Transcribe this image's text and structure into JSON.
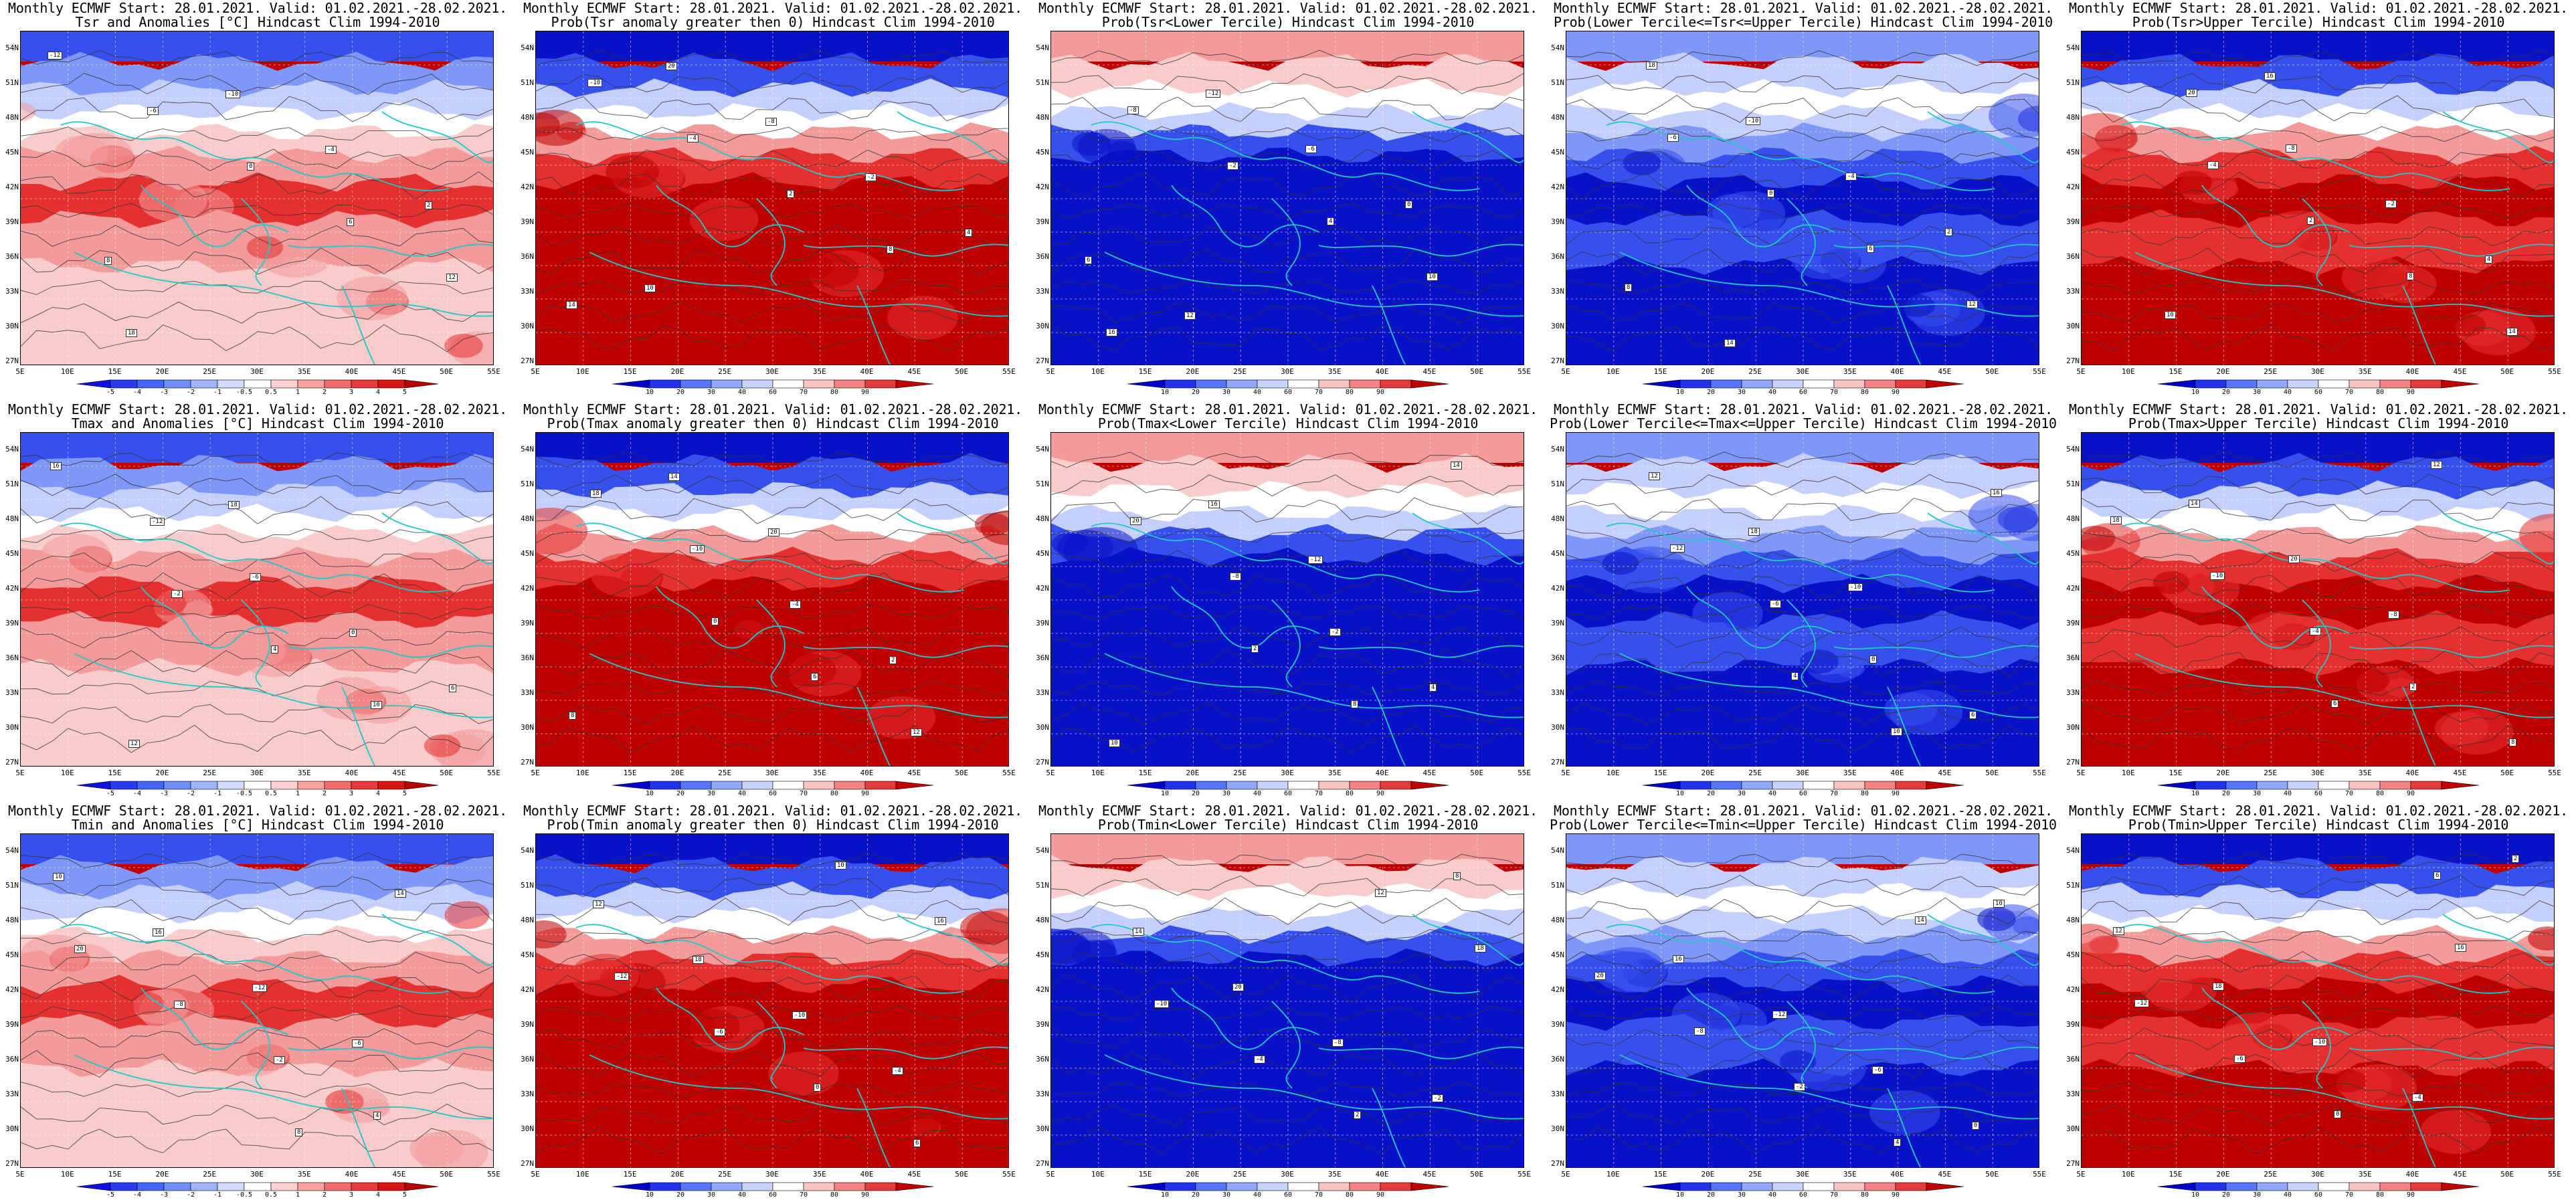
{
  "panels": [
    {
      "line1": "Monthly ECMWF Start: 28.01.2021. Valid: 01.02.2021.-28.02.2021.",
      "line2": "Tsr and Anomalies [°C] Hindcast Clim 1994-2010",
      "kind": "anomaly",
      "scale": "anom"
    },
    {
      "line1": "Monthly ECMWF Start: 28.01.2021. Valid: 01.02.2021.-28.02.2021.",
      "line2": "Prob(Tsr anomaly greater then 0) Hindcast Clim 1994-2010",
      "kind": "warm",
      "scale": "prob"
    },
    {
      "line1": "Monthly ECMWF Start: 28.01.2021. Valid: 01.02.2021.-28.02.2021.",
      "line2": "Prob(Tsr<Lower Tercile) Hindcast Clim 1994-2010",
      "kind": "cold",
      "scale": "prob"
    },
    {
      "line1": "Monthly ECMWF Start: 28.01.2021. Valid: 01.02.2021.-28.02.2021.",
      "line2": "Prob(Lower Tercile<=Tsr<=Upper Tercile) Hindcast Clim 1994-2010",
      "kind": "middle",
      "scale": "prob"
    },
    {
      "line1": "Monthly ECMWF Start: 28.01.2021. Valid: 01.02.2021.-28.02.2021.",
      "line2": "Prob(Tsr>Upper Tercile) Hindcast Clim 1994-2010",
      "kind": "upper",
      "scale": "prob"
    },
    {
      "line1": "Monthly ECMWF Start: 28.01.2021. Valid: 01.02.2021.-28.02.2021.",
      "line2": "Tmax and Anomalies [°C] Hindcast Clim 1994-2010",
      "kind": "anomaly",
      "scale": "anom"
    },
    {
      "line1": "Monthly ECMWF Start: 28.01.2021. Valid: 01.02.2021.-28.02.2021.",
      "line2": "Prob(Tmax anomaly greater then 0) Hindcast Clim 1994-2010",
      "kind": "warm",
      "scale": "prob"
    },
    {
      "line1": "Monthly ECMWF Start: 28.01.2021. Valid: 01.02.2021.-28.02.2021.",
      "line2": "Prob(Tmax<Lower Tercile) Hindcast Clim 1994-2010",
      "kind": "cold",
      "scale": "prob"
    },
    {
      "line1": "Monthly ECMWF Start: 28.01.2021. Valid: 01.02.2021.-28.02.2021.",
      "line2": "Prob(Lower Tercile<=Tmax<=Upper Tercile) Hindcast Clim 1994-2010",
      "kind": "middle",
      "scale": "prob"
    },
    {
      "line1": "Monthly ECMWF Start: 28.01.2021. Valid: 01.02.2021.-28.02.2021.",
      "line2": "Prob(Tmax>Upper Tercile) Hindcast Clim 1994-2010",
      "kind": "upper",
      "scale": "prob"
    },
    {
      "line1": "Monthly ECMWF Start: 28.01.2021. Valid: 01.02.2021.-28.02.2021.",
      "line2": "Tmin and Anomalies [°C] Hindcast Clim 1994-2010",
      "kind": "anomaly",
      "scale": "anom"
    },
    {
      "line1": "Monthly ECMWF Start: 28.01.2021. Valid: 01.02.2021.-28.02.2021.",
      "line2": "Prob(Tmin anomaly greater then 0) Hindcast Clim 1994-2010",
      "kind": "warm",
      "scale": "prob"
    },
    {
      "line1": "Monthly ECMWF Start: 28.01.2021. Valid: 01.02.2021.-28.02.2021.",
      "line2": "Prob(Tmin<Lower Tercile) Hindcast Clim 1994-2010",
      "kind": "cold",
      "scale": "prob"
    },
    {
      "line1": "Monthly ECMWF Start: 28.01.2021. Valid: 01.02.2021.-28.02.2021.",
      "line2": "Prob(Lower Tercile<=Tmin<=Upper Tercile) Hindcast Clim 1994-2010",
      "kind": "middle",
      "scale": "prob"
    },
    {
      "line1": "Monthly ECMWF Start: 28.01.2021. Valid: 01.02.2021.-28.02.2021.",
      "line2": "Prob(Tmin>Upper Tercile) Hindcast Clim 1994-2010",
      "kind": "upper",
      "scale": "prob"
    }
  ],
  "axes": {
    "lat_labels": [
      "54N",
      "51N",
      "48N",
      "45N",
      "42N",
      "39N",
      "36N",
      "33N",
      "30N",
      "27N"
    ],
    "lon_labels": [
      "5E",
      "10E",
      "15E",
      "20E",
      "25E",
      "30E",
      "35E",
      "40E",
      "45E",
      "50E",
      "55E"
    ]
  },
  "colorbars": {
    "anom": {
      "labels": [
        "-5",
        "-4",
        "-3",
        "-2",
        "-1",
        "-0.5",
        "0.5",
        "1",
        "2",
        "3",
        "4",
        "5"
      ],
      "colors": [
        "#1010e0",
        "#2a3cf0",
        "#4466f5",
        "#6f8ef8",
        "#9fb4fb",
        "#cfdafd",
        "#ffffff",
        "#fdd0d0",
        "#f9a0a0",
        "#f36c6c",
        "#e83a3a",
        "#d81414",
        "#b80000"
      ]
    },
    "prob": {
      "labels": [
        "10",
        "20",
        "30",
        "40",
        "60",
        "70",
        "80",
        "90"
      ],
      "colors": [
        "#0000c8",
        "#2233ee",
        "#5577f5",
        "#8fa8f9",
        "#c8d4fc",
        "#ffffff",
        "#fbc4c4",
        "#f48484",
        "#e53b3b",
        "#c00000"
      ]
    }
  },
  "palettes": {
    "deep_red": "#bf0000",
    "red": "#e53030",
    "pink": "#f39a9a",
    "light_pink": "#f9cccc",
    "white": "#ffffff",
    "light_blue": "#c4d0fb",
    "mid_blue": "#7f97f6",
    "blue": "#3650ee",
    "deep_blue": "#0a12c8",
    "coast": "#20c8c8",
    "contour": "#303030"
  },
  "contour_labels": [
    "-12",
    "-10",
    "-8",
    "-6",
    "-4",
    "-2",
    "0",
    "2",
    "4",
    "6",
    "8",
    "10",
    "12",
    "14",
    "16",
    "18",
    "20"
  ]
}
